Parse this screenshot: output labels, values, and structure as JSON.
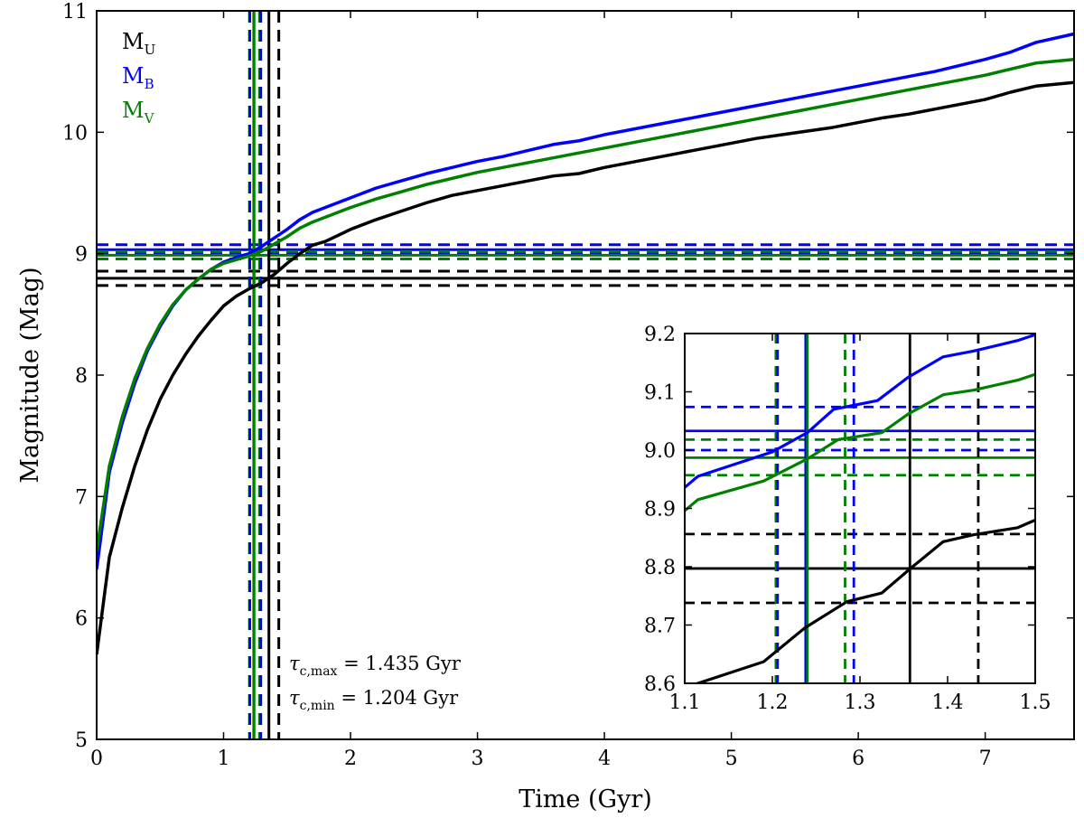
{
  "chart_data": {
    "type": "line",
    "main": {
      "xlabel": "Time (Gyr)",
      "ylabel": "Magnitude (Mag)",
      "xlim": [
        0,
        7.7
      ],
      "ylim": [
        5,
        11
      ],
      "xticks": [
        0,
        1,
        2,
        3,
        4,
        5,
        6,
        7
      ],
      "yticks": [
        5,
        6,
        7,
        8,
        9,
        10,
        11
      ],
      "legend_position": "top-left",
      "series": [
        {
          "name": "M_U",
          "label_main": "M",
          "label_sub": "U",
          "color": "#000000",
          "x": [
            0,
            0.1,
            0.2,
            0.3,
            0.4,
            0.5,
            0.6,
            0.7,
            0.8,
            0.9,
            1.0,
            1.1,
            1.2,
            1.3,
            1.4,
            1.5,
            1.6,
            1.7,
            1.8,
            1.9,
            2.0,
            2.2,
            2.4,
            2.6,
            2.8,
            3.0,
            3.2,
            3.4,
            3.6,
            3.8,
            4.0,
            4.2,
            4.4,
            4.6,
            4.8,
            5.0,
            5.2,
            5.4,
            5.6,
            5.8,
            6.0,
            6.2,
            6.4,
            6.6,
            6.8,
            7.0,
            7.2,
            7.4,
            7.7
          ],
          "y": [
            5.7,
            6.5,
            6.9,
            7.25,
            7.55,
            7.8,
            8.0,
            8.17,
            8.32,
            8.45,
            8.57,
            8.65,
            8.71,
            8.76,
            8.83,
            8.92,
            9.0,
            9.07,
            9.1,
            9.15,
            9.2,
            9.28,
            9.35,
            9.42,
            9.48,
            9.52,
            9.56,
            9.6,
            9.64,
            9.66,
            9.71,
            9.75,
            9.79,
            9.83,
            9.87,
            9.91,
            9.95,
            9.98,
            10.01,
            10.04,
            10.08,
            10.12,
            10.15,
            10.19,
            10.23,
            10.27,
            10.33,
            10.38,
            10.41
          ]
        },
        {
          "name": "M_B",
          "label_main": "M",
          "label_sub": "B",
          "color": "#0000ff",
          "x": [
            0,
            0.1,
            0.2,
            0.3,
            0.4,
            0.5,
            0.6,
            0.7,
            0.8,
            0.9,
            1.0,
            1.1,
            1.2,
            1.3,
            1.4,
            1.5,
            1.6,
            1.7,
            1.8,
            1.9,
            2.0,
            2.2,
            2.4,
            2.6,
            2.8,
            3.0,
            3.2,
            3.4,
            3.6,
            3.8,
            4.0,
            4.2,
            4.4,
            4.6,
            4.8,
            5.0,
            5.2,
            5.4,
            5.6,
            5.8,
            6.0,
            6.2,
            6.4,
            6.6,
            6.8,
            7.0,
            7.2,
            7.4,
            7.7
          ],
          "y": [
            6.4,
            7.2,
            7.6,
            7.93,
            8.2,
            8.4,
            8.57,
            8.7,
            8.79,
            8.87,
            8.93,
            8.97,
            9.0,
            9.06,
            9.13,
            9.2,
            9.28,
            9.34,
            9.38,
            9.42,
            9.46,
            9.54,
            9.6,
            9.66,
            9.71,
            9.76,
            9.8,
            9.85,
            9.9,
            9.93,
            9.98,
            10.02,
            10.06,
            10.1,
            10.14,
            10.18,
            10.22,
            10.26,
            10.3,
            10.34,
            10.38,
            10.42,
            10.46,
            10.5,
            10.55,
            10.6,
            10.66,
            10.74,
            10.81
          ]
        },
        {
          "name": "M_V",
          "label_main": "M",
          "label_sub": "V",
          "color": "#008000",
          "x": [
            0,
            0.1,
            0.2,
            0.3,
            0.4,
            0.5,
            0.6,
            0.7,
            0.8,
            0.9,
            1.0,
            1.1,
            1.2,
            1.3,
            1.4,
            1.5,
            1.6,
            1.7,
            1.8,
            1.9,
            2.0,
            2.2,
            2.4,
            2.6,
            2.8,
            3.0,
            3.2,
            3.4,
            3.6,
            3.8,
            4.0,
            4.2,
            4.4,
            4.6,
            4.8,
            5.0,
            5.2,
            5.4,
            5.6,
            5.8,
            6.0,
            6.2,
            6.4,
            6.6,
            6.8,
            7.0,
            7.2,
            7.4,
            7.7
          ],
          "y": [
            6.55,
            7.25,
            7.65,
            7.97,
            8.22,
            8.42,
            8.58,
            8.7,
            8.79,
            8.87,
            8.92,
            8.95,
            8.98,
            9.02,
            9.08,
            9.14,
            9.21,
            9.26,
            9.3,
            9.34,
            9.38,
            9.45,
            9.51,
            9.57,
            9.62,
            9.67,
            9.71,
            9.75,
            9.79,
            9.83,
            9.87,
            9.91,
            9.95,
            9.99,
            10.03,
            10.07,
            10.11,
            10.15,
            10.19,
            10.23,
            10.27,
            10.31,
            10.35,
            10.39,
            10.43,
            10.47,
            10.52,
            10.57,
            10.6
          ]
        }
      ],
      "reference_lines": [
        {
          "orient": "h",
          "value": 8.797,
          "style": "solid",
          "color": "#000000"
        },
        {
          "orient": "h",
          "value": 8.856,
          "style": "dashed",
          "color": "#000000"
        },
        {
          "orient": "h",
          "value": 8.738,
          "style": "dashed",
          "color": "#000000"
        },
        {
          "orient": "h",
          "value": 9.033,
          "style": "solid",
          "color": "#0000ff"
        },
        {
          "orient": "h",
          "value": 9.074,
          "style": "dashed",
          "color": "#0000ff"
        },
        {
          "orient": "h",
          "value": 9.0,
          "style": "dashed",
          "color": "#0000ff"
        },
        {
          "orient": "h",
          "value": 8.987,
          "style": "solid",
          "color": "#008000"
        },
        {
          "orient": "h",
          "value": 9.018,
          "style": "dashed",
          "color": "#008000"
        },
        {
          "orient": "h",
          "value": 8.957,
          "style": "dashed",
          "color": "#008000"
        },
        {
          "orient": "v",
          "value": 1.357,
          "style": "solid",
          "color": "#000000"
        },
        {
          "orient": "v",
          "value": 1.435,
          "style": "dashed",
          "color": "#000000"
        },
        {
          "orient": "v",
          "value": 1.204,
          "style": "dashed",
          "color": "#008000"
        },
        {
          "orient": "v",
          "value": 1.206,
          "style": "dashed",
          "color": "#0000ff"
        },
        {
          "orient": "v",
          "value": 1.238,
          "style": "solid",
          "color": "#0000ff"
        },
        {
          "orient": "v",
          "value": 1.24,
          "style": "solid",
          "color": "#008000"
        },
        {
          "orient": "v",
          "value": 1.283,
          "style": "dashed",
          "color": "#008000"
        },
        {
          "orient": "v",
          "value": 1.293,
          "style": "dashed",
          "color": "#0000ff"
        }
      ],
      "annotations": [
        {
          "prefix": "τ",
          "sub": "c,max",
          "suffix": " = 1.435 Gyr"
        },
        {
          "prefix": "τ",
          "sub": "c,min",
          "suffix": " = 1.204 Gyr"
        }
      ]
    },
    "inset": {
      "xlim": [
        1.1,
        1.5
      ],
      "ylim": [
        8.6,
        9.2
      ],
      "xticks": [
        1.1,
        1.2,
        1.3,
        1.4,
        1.5
      ],
      "yticks": [
        8.6,
        8.7,
        8.8,
        8.9,
        9.0,
        9.1,
        9.2
      ],
      "xtick_labels": [
        "1.1",
        "1.2",
        "1.3",
        "1.4",
        "1.5"
      ],
      "ytick_labels": [
        "8.6",
        "8.7",
        "8.8",
        "8.9",
        "9.0",
        "9.1",
        "9.2"
      ],
      "series": [
        {
          "name": "M_U",
          "color": "#000000",
          "x": [
            1.1,
            1.115,
            1.19,
            1.237,
            1.285,
            1.325,
            1.36,
            1.395,
            1.43,
            1.48,
            1.5
          ],
          "y": [
            8.595,
            8.6,
            8.637,
            8.695,
            8.74,
            8.755,
            8.8,
            8.843,
            8.855,
            8.867,
            8.88
          ]
        },
        {
          "name": "M_B",
          "color": "#0000ff",
          "x": [
            1.1,
            1.115,
            1.2,
            1.24,
            1.27,
            1.32,
            1.355,
            1.395,
            1.43,
            1.48,
            1.5
          ],
          "y": [
            8.936,
            8.955,
            8.997,
            9.03,
            9.07,
            9.085,
            9.125,
            9.16,
            9.17,
            9.188,
            9.198
          ]
        },
        {
          "name": "M_V",
          "color": "#008000",
          "x": [
            1.1,
            1.115,
            1.19,
            1.24,
            1.275,
            1.325,
            1.355,
            1.395,
            1.43,
            1.48,
            1.5
          ],
          "y": [
            8.896,
            8.915,
            8.947,
            8.985,
            9.018,
            9.03,
            9.062,
            9.095,
            9.103,
            9.12,
            9.13
          ]
        }
      ]
    }
  }
}
